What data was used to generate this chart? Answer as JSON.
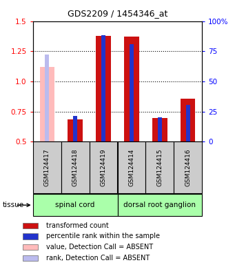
{
  "title": "GDS2209 / 1454346_at",
  "samples": [
    "GSM124417",
    "GSM124418",
    "GSM124419",
    "GSM124414",
    "GSM124415",
    "GSM124416"
  ],
  "tissue_groups": [
    {
      "label": "spinal cord",
      "indices": [
        0,
        1,
        2
      ]
    },
    {
      "label": "dorsal root ganglion",
      "indices": [
        3,
        4,
        5
      ]
    }
  ],
  "red_values": [
    null,
    0.685,
    1.38,
    1.375,
    0.695,
    0.855
  ],
  "blue_values": [
    null,
    0.715,
    1.385,
    1.31,
    0.705,
    0.805
  ],
  "pink_values": [
    1.12,
    null,
    null,
    null,
    null,
    null
  ],
  "lightblue_values": [
    1.225,
    null,
    null,
    null,
    null,
    null
  ],
  "ymin": 0.5,
  "ymax": 1.5,
  "yticks_left": [
    0.5,
    0.75,
    1.0,
    1.25,
    1.5
  ],
  "yticks_right_vals": [
    0.5,
    0.75,
    1.0,
    1.25,
    1.5
  ],
  "yticks_right_labels": [
    "0",
    "25",
    "50",
    "75",
    "100%"
  ],
  "red_color": "#cc1111",
  "blue_color": "#2233cc",
  "pink_color": "#ffbbbb",
  "lightblue_color": "#bbbbee",
  "tissue_color": "#aaffaa",
  "sample_box_color": "#cccccc",
  "legend_items": [
    {
      "color": "#cc1111",
      "label": "transformed count"
    },
    {
      "color": "#2233cc",
      "label": "percentile rank within the sample"
    },
    {
      "color": "#ffbbbb",
      "label": "value, Detection Call = ABSENT"
    },
    {
      "color": "#bbbbee",
      "label": "rank, Detection Call = ABSENT"
    }
  ]
}
